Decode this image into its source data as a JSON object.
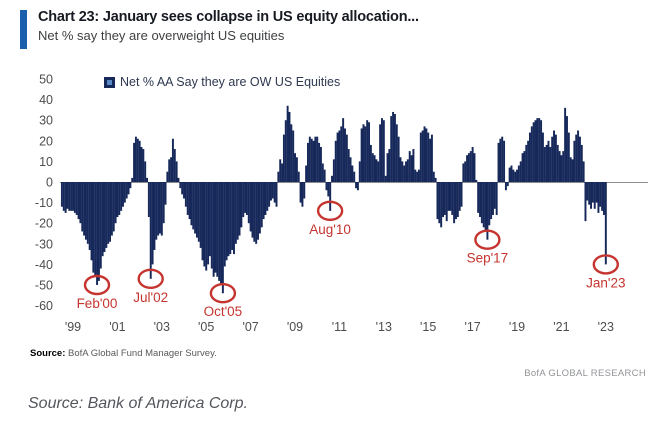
{
  "header": {
    "title": "Chart 23: January sees collapse in US equity allocation...",
    "subtitle": "Net % say they are overweight US equities"
  },
  "footer": {
    "source_label": "Source:",
    "source_text": " BofA Global Fund Manager Survey.",
    "brand": "BofA GLOBAL RESEARCH"
  },
  "caption": "Source: Bank of America Corp.",
  "colors": {
    "accent_blue": "#1c5fad",
    "bar_navy": "#16295a",
    "annotation_red": "#c5342e",
    "axis_line_gray": "#8c8c8c",
    "tick_text_gray": "#4d4d4d"
  },
  "chart_data": {
    "type": "bar",
    "legend": "Net % AA Say they are OW US Equities",
    "frequency": "monthly",
    "x_start": "1998-07",
    "x_end": "2023-01",
    "ylim": [
      -60,
      50
    ],
    "grid": "zero-line-only",
    "legend_position": "top-left-inside",
    "yticks": [
      50,
      40,
      30,
      20,
      10,
      0,
      -10,
      -20,
      -30,
      -40,
      -50,
      -60
    ],
    "xticks": [
      "'99",
      "'01",
      "'03",
      "'05",
      "'07",
      "'09",
      "'11",
      "'13",
      "'15",
      "'17",
      "'19",
      "'21",
      "'23"
    ],
    "values": [
      -12,
      -14,
      -15,
      -13,
      -14,
      -14,
      -14,
      -15,
      -16,
      -18,
      -20,
      -24,
      -26,
      -28,
      -30,
      -33,
      -38,
      -44,
      -46,
      -50,
      -48,
      -42,
      -36,
      -34,
      -32,
      -30,
      -29,
      -26,
      -24,
      -20,
      -17,
      -16,
      -14,
      -12,
      -10,
      -8,
      -6,
      -3,
      2,
      19,
      22,
      21,
      20,
      17,
      16,
      10,
      2,
      -17,
      -47,
      -40,
      -33,
      -28,
      -26,
      -25,
      -26,
      -20,
      -11,
      5,
      11,
      12,
      21,
      16,
      10,
      2,
      -3,
      -6,
      -8,
      -12,
      -16,
      -18,
      -21,
      -23,
      -25,
      -27,
      -29,
      -32,
      -38,
      -41,
      -43,
      -40,
      -36,
      -42,
      -46,
      -44,
      -46,
      -48,
      -50,
      -54,
      -41,
      -38,
      -36,
      -35,
      -33,
      -35,
      -30,
      -28,
      -26,
      -22,
      -17,
      -15,
      -16,
      -20,
      -24,
      -27,
      -29,
      -30,
      -28,
      -25,
      -22,
      -18,
      -16,
      -14,
      -12,
      -9,
      -8,
      -10,
      -12,
      5,
      11,
      9,
      23,
      30,
      37,
      34,
      28,
      25,
      14,
      12,
      5,
      -10,
      -12,
      -8,
      8,
      19,
      22,
      21,
      20,
      22,
      22,
      19,
      17,
      9,
      6,
      -4,
      -7,
      -14,
      3,
      11,
      20,
      24,
      25,
      27,
      31,
      26,
      23,
      16,
      12,
      8,
      5,
      -3,
      -4,
      10,
      26,
      28,
      27,
      30,
      29,
      18,
      14,
      13,
      11,
      10,
      28,
      31,
      30,
      3,
      14,
      16,
      32,
      34,
      33,
      28,
      22,
      12,
      10,
      8,
      10,
      11,
      15,
      13,
      16,
      6,
      5,
      6,
      24,
      25,
      27,
      26,
      24,
      21,
      23,
      5,
      2,
      -18,
      -20,
      -22,
      -17,
      -16,
      -19,
      -14,
      -14,
      -16,
      -20,
      -18,
      -17,
      -14,
      -12,
      9,
      10,
      13,
      14,
      15,
      17,
      14,
      1,
      -15,
      -17,
      -20,
      -22,
      -24,
      -28,
      -21,
      -18,
      -16,
      -13,
      -16,
      19,
      21,
      22,
      20,
      -4,
      -2,
      7,
      8,
      6,
      5,
      6,
      8,
      10,
      14,
      15,
      18,
      20,
      24,
      27,
      29,
      30,
      31,
      31,
      30,
      24,
      17,
      18,
      20,
      17,
      22,
      25,
      23,
      18,
      15,
      13,
      15,
      36,
      32,
      24,
      12,
      11,
      20,
      23,
      25,
      22,
      18,
      10,
      -19,
      -9,
      -11,
      -13,
      -10,
      -13,
      -10,
      -15,
      -12,
      -14,
      -16,
      -40
    ],
    "annotations": [
      {
        "label": "Feb'00",
        "index": 19,
        "value": -50
      },
      {
        "label": "Jul'02",
        "index": 48,
        "value": -47
      },
      {
        "label": "Oct'05",
        "index": 87,
        "value": -54
      },
      {
        "label": "Aug'10",
        "index": 145,
        "value": -14
      },
      {
        "label": "Sep'17",
        "index": 230,
        "value": -28
      },
      {
        "label": "Jan'23",
        "index": 294,
        "value": -40
      }
    ]
  }
}
